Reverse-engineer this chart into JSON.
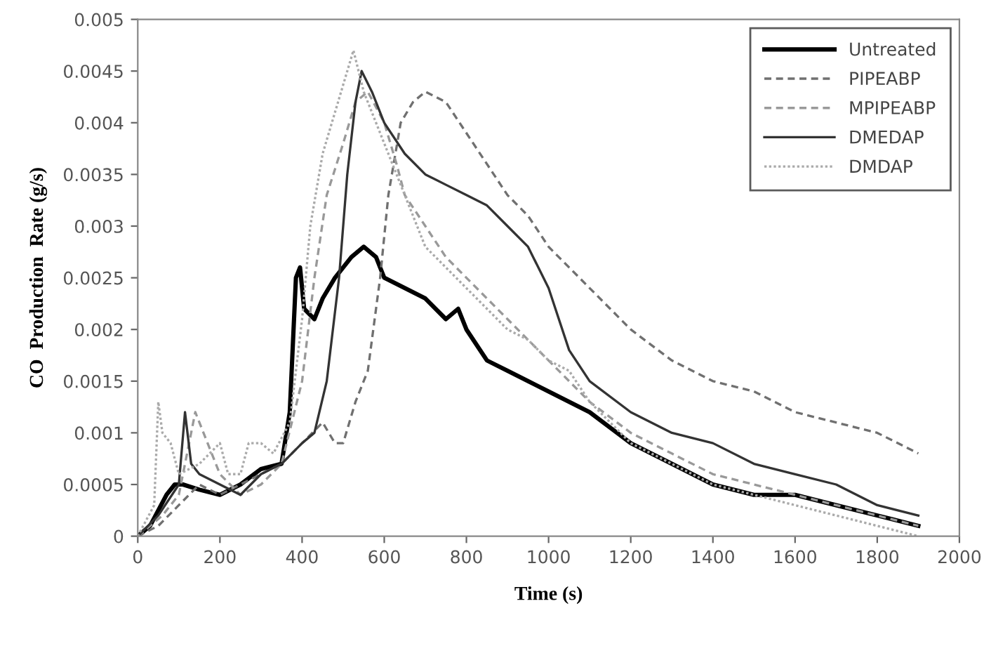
{
  "chart_data": {
    "type": "line",
    "xlabel": "Time (s)",
    "ylabel": "CO  Production  Rate (g/s)",
    "xlim": [
      0,
      2000
    ],
    "xticks": [
      0,
      200,
      400,
      600,
      800,
      1000,
      1200,
      1400,
      1600,
      1800,
      2000
    ],
    "ylim": [
      0,
      0.005
    ],
    "yticks": [
      0,
      0.0005,
      0.001,
      0.0015,
      0.002,
      0.0025,
      0.003,
      0.0035,
      0.004,
      0.0045,
      0.005
    ],
    "grid": false,
    "legend": "top right",
    "marker": "none",
    "series": [
      {
        "name": "Untreated",
        "color": "#000000",
        "line_style": "solid",
        "x": [
          0,
          30,
          70,
          90,
          110,
          150,
          200,
          250,
          300,
          350,
          370,
          385,
          395,
          405,
          430,
          450,
          480,
          500,
          520,
          550,
          580,
          600,
          650,
          700,
          750,
          780,
          800,
          850,
          900,
          950,
          1000,
          1100,
          1200,
          1300,
          1400,
          1500,
          1600,
          1700,
          1800,
          1900
        ],
        "values": [
          0,
          0.0001,
          0.0004,
          0.0005,
          0.0005,
          0.00045,
          0.0004,
          0.0005,
          0.00065,
          0.0007,
          0.0012,
          0.0025,
          0.0026,
          0.0022,
          0.0021,
          0.0023,
          0.0025,
          0.0026,
          0.0027,
          0.0028,
          0.0027,
          0.0025,
          0.0024,
          0.0023,
          0.0021,
          0.0022,
          0.002,
          0.0017,
          0.0016,
          0.0015,
          0.0014,
          0.0012,
          0.0009,
          0.0007,
          0.0005,
          0.0004,
          0.0004,
          0.0003,
          0.0002,
          0.0001
        ]
      },
      {
        "name": "PIPEABP",
        "color": "#707070",
        "line_style": "dashed",
        "x": [
          0,
          50,
          100,
          150,
          200,
          250,
          300,
          350,
          400,
          450,
          480,
          500,
          530,
          560,
          590,
          610,
          640,
          670,
          700,
          750,
          800,
          850,
          900,
          950,
          1000,
          1050,
          1100,
          1150,
          1200,
          1300,
          1400,
          1500,
          1600,
          1700,
          1800,
          1900
        ],
        "values": [
          0,
          0.0001,
          0.0003,
          0.0005,
          0.0004,
          0.0005,
          0.0006,
          0.0007,
          0.0009,
          0.0011,
          0.0009,
          0.0009,
          0.0013,
          0.0016,
          0.0025,
          0.0033,
          0.004,
          0.0042,
          0.0043,
          0.0042,
          0.0039,
          0.0036,
          0.0033,
          0.0031,
          0.0028,
          0.0026,
          0.0024,
          0.0022,
          0.002,
          0.0017,
          0.0015,
          0.0014,
          0.0012,
          0.0011,
          0.001,
          0.0008
        ]
      },
      {
        "name": "MPIPEABP",
        "color": "#999999",
        "line_style": "dashed",
        "x": [
          0,
          60,
          100,
          140,
          160,
          200,
          250,
          300,
          350,
          400,
          430,
          460,
          500,
          530,
          560,
          600,
          630,
          650,
          700,
          750,
          800,
          850,
          900,
          950,
          1000,
          1100,
          1200,
          1300,
          1400,
          1500,
          1600,
          1700,
          1800,
          1900
        ],
        "values": [
          0,
          0.0002,
          0.0004,
          0.0012,
          0.001,
          0.0006,
          0.0004,
          0.0005,
          0.0007,
          0.0015,
          0.0025,
          0.0033,
          0.0038,
          0.0042,
          0.0043,
          0.004,
          0.0036,
          0.0033,
          0.003,
          0.0027,
          0.0025,
          0.0023,
          0.0021,
          0.0019,
          0.0017,
          0.0013,
          0.001,
          0.0008,
          0.0006,
          0.0005,
          0.0004,
          0.0003,
          0.0002,
          0.0001
        ]
      },
      {
        "name": "DMEDAP",
        "color": "#333333",
        "line_style": "solid",
        "x": [
          0,
          50,
          100,
          115,
          130,
          150,
          200,
          250,
          300,
          350,
          400,
          430,
          460,
          490,
          510,
          530,
          545,
          570,
          600,
          650,
          700,
          750,
          800,
          850,
          900,
          950,
          1000,
          1050,
          1100,
          1200,
          1300,
          1400,
          1500,
          1600,
          1700,
          1800,
          1900
        ],
        "values": [
          0,
          0.0002,
          0.0005,
          0.0012,
          0.0007,
          0.0006,
          0.0005,
          0.0004,
          0.0006,
          0.0007,
          0.0009,
          0.001,
          0.0015,
          0.0025,
          0.0035,
          0.0042,
          0.0045,
          0.0043,
          0.004,
          0.0037,
          0.0035,
          0.0034,
          0.0033,
          0.0032,
          0.003,
          0.0028,
          0.0024,
          0.0018,
          0.0015,
          0.0012,
          0.001,
          0.0009,
          0.0007,
          0.0006,
          0.0005,
          0.0003,
          0.0002
        ]
      },
      {
        "name": "DMDAP",
        "color": "#aaaaaa",
        "line_style": "dotted",
        "x": [
          0,
          40,
          50,
          60,
          80,
          100,
          150,
          200,
          220,
          250,
          270,
          300,
          330,
          370,
          400,
          420,
          450,
          480,
          510,
          525,
          550,
          600,
          650,
          700,
          750,
          800,
          850,
          900,
          950,
          1000,
          1050,
          1100,
          1200,
          1300,
          1400,
          1500,
          1600,
          1700,
          1800,
          1900
        ],
        "values": [
          0,
          0.0003,
          0.0013,
          0.001,
          0.0009,
          0.0006,
          0.0007,
          0.0009,
          0.0006,
          0.0006,
          0.0009,
          0.0009,
          0.0008,
          0.0011,
          0.0021,
          0.003,
          0.0037,
          0.0041,
          0.0045,
          0.0047,
          0.0043,
          0.0038,
          0.0033,
          0.0028,
          0.0026,
          0.0024,
          0.0022,
          0.002,
          0.0019,
          0.0017,
          0.0016,
          0.0013,
          0.0009,
          0.0007,
          0.0005,
          0.0004,
          0.0003,
          0.0002,
          0.0001,
          0
        ]
      }
    ]
  }
}
